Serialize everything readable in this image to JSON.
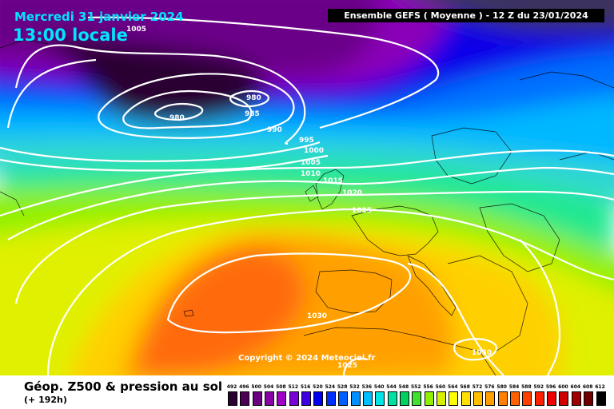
{
  "header": {
    "date": "Mercredi 31 janvier 2024",
    "time": "13:00 locale",
    "model": "Ensemble GEFS  ( Moyenne )  -  12 Z du 23/01/2024"
  },
  "map": {
    "isobar_labels": [
      "1005",
      "980",
      "980",
      "985",
      "990",
      "995",
      "1000",
      "1005",
      "1010",
      "1015",
      "1020",
      "1025",
      "1030",
      "1030",
      "1025"
    ],
    "copyright": "Copyright © 2024 Meteociel.fr"
  },
  "footer": {
    "title": "Géop. Z500 & pression au sol",
    "subtitle": "(+ 192h)"
  },
  "colorbar": {
    "labels": [
      "492",
      "496",
      "500",
      "504",
      "508",
      "512",
      "516",
      "520",
      "524",
      "528",
      "532",
      "536",
      "540",
      "544",
      "548",
      "552",
      "556",
      "560",
      "564",
      "568",
      "572",
      "576",
      "580",
      "584",
      "588",
      "592",
      "596",
      "600",
      "604",
      "608",
      "612"
    ],
    "colors": [
      "#2a0030",
      "#4a0055",
      "#6b0080",
      "#8a00a8",
      "#a000c8",
      "#7a00d8",
      "#3d00e0",
      "#0000f0",
      "#0030ff",
      "#0060ff",
      "#0090ff",
      "#00bfff",
      "#00e5e5",
      "#00e0a0",
      "#00d060",
      "#40e030",
      "#90f000",
      "#d8f000",
      "#ffff00",
      "#ffe000",
      "#ffc000",
      "#ffa000",
      "#ff8000",
      "#ff6000",
      "#ff4000",
      "#ff2000",
      "#f00000",
      "#d00000",
      "#a00000",
      "#700000",
      "#000000"
    ]
  }
}
